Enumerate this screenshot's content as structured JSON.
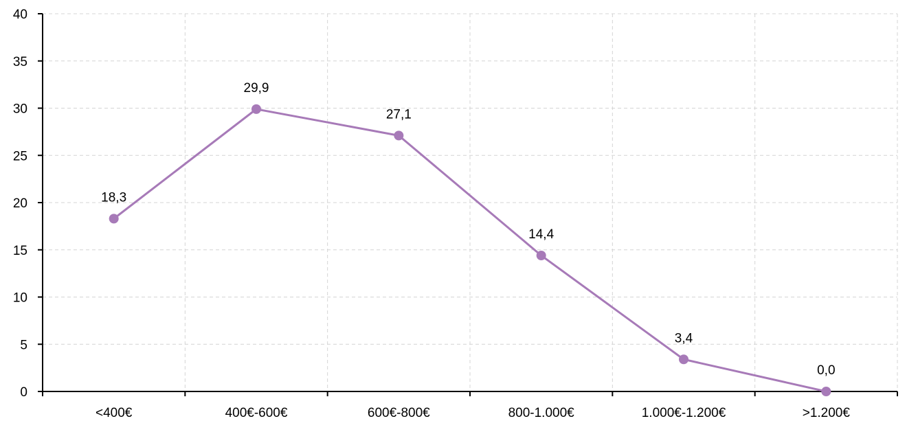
{
  "chart_data": {
    "type": "line",
    "title": "",
    "xlabel": "",
    "ylabel": "",
    "categories": [
      "<400€",
      "400€-600€",
      "600€-800€",
      "800-1.000€",
      "1.000€-1.200€",
      ">1.200€"
    ],
    "series": [
      {
        "values": [
          18.3,
          29.9,
          27.1,
          14.4,
          3.4,
          0.0
        ],
        "labels": [
          "18,3",
          "29,9",
          "27,1",
          "14,4",
          "3,4",
          "0,0"
        ],
        "color": "#a77ab8"
      }
    ],
    "ylim": [
      0,
      40
    ],
    "y_ticks": [
      0,
      5,
      10,
      15,
      20,
      25,
      30,
      35,
      40
    ],
    "y_tick_labels": [
      "0",
      "5",
      "10",
      "15",
      "20",
      "25",
      "30",
      "35",
      "40"
    ],
    "grid": true,
    "grid_style": "dashed",
    "legend": "none"
  }
}
